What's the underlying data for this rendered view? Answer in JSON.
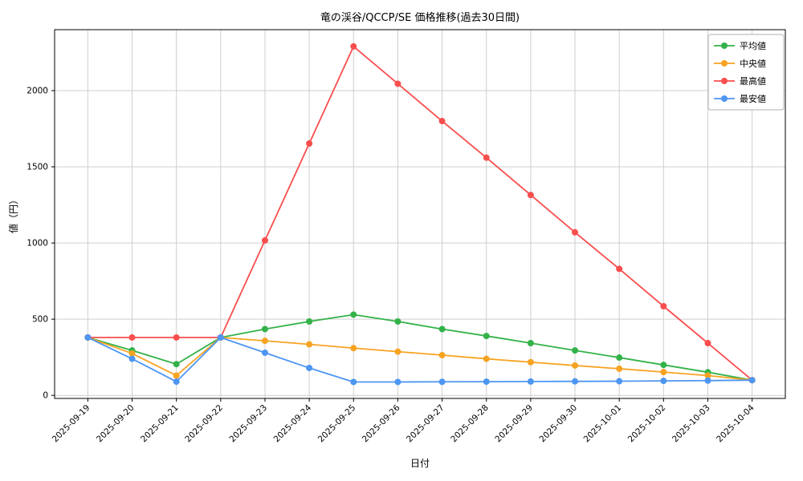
{
  "chart_data": {
    "type": "line",
    "title": "竜の渓谷/QCCP/SE 価格推移(過去30日間)",
    "xlabel": "日付",
    "ylabel": "値（円）",
    "categories": [
      "2025-09-19",
      "2025-09-20",
      "2025-09-21",
      "2025-09-22",
      "2025-09-23",
      "2025-09-24",
      "2025-09-25",
      "2025-09-26",
      "2025-09-27",
      "2025-09-28",
      "2025-09-29",
      "2025-09-30",
      "2025-10-01",
      "2025-10-02",
      "2025-10-03",
      "2025-10-04"
    ],
    "series": [
      {
        "id": "mean",
        "name": "平均値",
        "color": "#33b249",
        "values": [
          380,
          295,
          205,
          380,
          435,
          485,
          530,
          485,
          435,
          390,
          343,
          295,
          248,
          200,
          152,
          100
        ]
      },
      {
        "id": "median",
        "name": "中央値",
        "color": "#f7a322",
        "values": [
          380,
          275,
          130,
          380,
          358,
          335,
          310,
          287,
          264,
          240,
          218,
          196,
          175,
          153,
          130,
          100
        ]
      },
      {
        "id": "max",
        "name": "最高値",
        "color": "#f94e4e",
        "values": [
          380,
          380,
          380,
          380,
          1017,
          1653,
          2290,
          2045,
          1800,
          1560,
          1315,
          1070,
          830,
          585,
          343,
          100
        ]
      },
      {
        "id": "min",
        "name": "最安値",
        "color": "#4d96f2",
        "values": [
          380,
          240,
          90,
          380,
          280,
          180,
          88,
          88,
          89,
          90,
          91,
          92,
          93,
          95,
          97,
          100
        ]
      }
    ],
    "yticks": [
      0,
      500,
      1000,
      1500,
      2000
    ],
    "ylim": [
      -20,
      2400
    ],
    "grid": true,
    "grid_color": "#cfcfcf",
    "axis_color": "#000000",
    "background_color": "#ffffff",
    "legend_position": "upper-right",
    "legend_border_color": "#b0b0b0"
  }
}
